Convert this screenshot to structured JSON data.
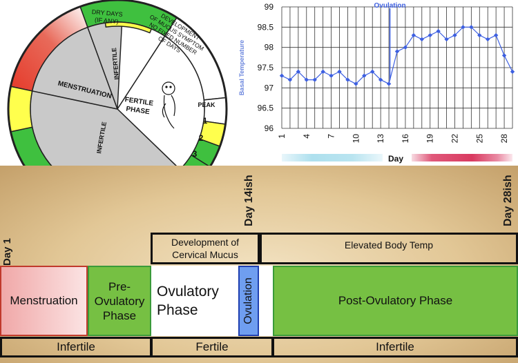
{
  "wheel": {
    "dry_days": "DRY DAYS (IF ANY)",
    "development": [
      "DEVELOPMENT",
      "OF MUCUS SYMPTOM",
      "NO FIXED NUMBER",
      "OF DAYS"
    ],
    "peak": "PEAK",
    "peak_days": [
      "1",
      "2",
      "3"
    ],
    "menstruation": "MENSTRUATION",
    "infertile_top": "INFERTILE",
    "infertile_lower": "INFERTILE",
    "fertile_phase": [
      "FERTILE",
      "PHASE"
    ]
  },
  "chart_data": {
    "type": "line",
    "ylabel": "Basal Temperature",
    "xlabel": "Day",
    "annotation": "Ovulation",
    "ovulation_day": 14,
    "x": [
      1,
      2,
      3,
      4,
      5,
      6,
      7,
      8,
      9,
      10,
      11,
      12,
      13,
      14,
      15,
      16,
      17,
      18,
      19,
      20,
      21,
      22,
      23,
      24,
      25,
      26,
      27,
      28,
      29
    ],
    "values": [
      97.3,
      97.2,
      97.4,
      97.2,
      97.2,
      97.4,
      97.3,
      97.4,
      97.2,
      97.1,
      97.3,
      97.4,
      97.2,
      97.1,
      97.9,
      98.0,
      98.3,
      98.2,
      98.3,
      98.4,
      98.2,
      98.3,
      98.5,
      98.5,
      98.3,
      98.2,
      98.3,
      97.8,
      97.4
    ],
    "ylim": [
      96,
      99
    ],
    "yticks": [
      "96",
      "96.5",
      "97",
      "97.5",
      "98",
      "98.5",
      "99"
    ],
    "xticks": [
      "1",
      "4",
      "7",
      "10",
      "13",
      "16",
      "19",
      "22",
      "25",
      "28"
    ],
    "xtick_days": [
      1,
      4,
      7,
      10,
      13,
      16,
      19,
      22,
      25,
      28
    ],
    "grid": true,
    "line_color": "#3d5fe0",
    "marker_color": "#3d5fe0"
  },
  "timeline": {
    "day1": "Day 1",
    "day14": "Day 14ish",
    "day28": "Day 28ish",
    "header_mucus": "Development of Cervical Mucus",
    "header_temp": "Elevated Body Temp",
    "menstruation": "Menstruation",
    "pre_ovulatory": "Pre-Ovulatory Phase",
    "ovulatory": "Ovulatory Phase",
    "ovulation": "Ovulation",
    "post_ovulatory": "Post-Ovulatory Phase",
    "infertile_left": "Infertile",
    "fertile": "Fertile",
    "infertile_right": "Infertile"
  },
  "colors": {
    "green": "#76c043",
    "wheel_green": "#3fc03f",
    "yellow": "#ffff4d",
    "red": "#e53a2a",
    "gray": "#c9c9c9",
    "ovulation_blue": "#6f9ef0"
  }
}
